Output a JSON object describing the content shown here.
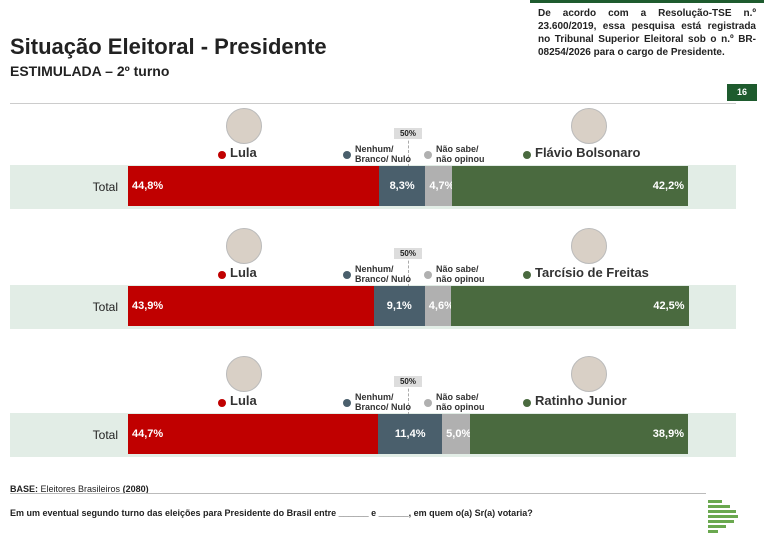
{
  "header": {
    "title": "Situação Eleitoral - Presidente",
    "subtitle": "ESTIMULADA – 2º turno",
    "disclaimer": "De acordo com a Resolução-TSE n.º 23.600/2019, essa pesquisa está registrada no Tribunal Superior Eleitoral sob o n.º BR-08254/2026 para o cargo de Presidente.",
    "page": "16"
  },
  "chart_data": [
    {
      "type": "bar",
      "orientation": "horizontal",
      "stacked": true,
      "categories": [
        "Total"
      ],
      "xlim": [
        0,
        100
      ],
      "reference": {
        "value": 50,
        "label": "50%"
      },
      "series": [
        {
          "name": "Lula",
          "color": "#c00000",
          "values": [
            44.8
          ],
          "value_labels": [
            "44,8%"
          ]
        },
        {
          "name": "Nenhum/\nBranco/ Nulo",
          "color": "#4a5f6c",
          "values": [
            8.3
          ],
          "value_labels": [
            "8,3%"
          ]
        },
        {
          "name": "Não sabe/\nnão opinou",
          "color": "#b0b0b0",
          "values": [
            4.7
          ],
          "value_labels": [
            "4,7%"
          ]
        },
        {
          "name": "Flávio Bolsonaro",
          "color": "#4a6a3f",
          "values": [
            42.2
          ],
          "value_labels": [
            "42,2%"
          ]
        }
      ]
    },
    {
      "type": "bar",
      "orientation": "horizontal",
      "stacked": true,
      "categories": [
        "Total"
      ],
      "xlim": [
        0,
        100
      ],
      "reference": {
        "value": 50,
        "label": "50%"
      },
      "series": [
        {
          "name": "Lula",
          "color": "#c00000",
          "values": [
            43.9
          ],
          "value_labels": [
            "43,9%"
          ]
        },
        {
          "name": "Nenhum/\nBranco/ Nulo",
          "color": "#4a5f6c",
          "values": [
            9.1
          ],
          "value_labels": [
            "9,1%"
          ]
        },
        {
          "name": "Não sabe/\nnão opinou",
          "color": "#b0b0b0",
          "values": [
            4.6
          ],
          "value_labels": [
            "4,6%"
          ]
        },
        {
          "name": "Tarcísio de Freitas",
          "color": "#4a6a3f",
          "values": [
            42.5
          ],
          "value_labels": [
            "42,5%"
          ]
        }
      ]
    },
    {
      "type": "bar",
      "orientation": "horizontal",
      "stacked": true,
      "categories": [
        "Total"
      ],
      "xlim": [
        0,
        100
      ],
      "reference": {
        "value": 50,
        "label": "50%"
      },
      "series": [
        {
          "name": "Lula",
          "color": "#c00000",
          "values": [
            44.7
          ],
          "value_labels": [
            "44,7%"
          ]
        },
        {
          "name": "Nenhum/\nBranco/ Nulo",
          "color": "#4a5f6c",
          "values": [
            11.4
          ],
          "value_labels": [
            "11,4%"
          ]
        },
        {
          "name": "Não sabe/\nnão opinou",
          "color": "#b0b0b0",
          "values": [
            5.0
          ],
          "value_labels": [
            "5,0%"
          ]
        },
        {
          "name": "Ratinho Junior",
          "color": "#4a6a3f",
          "values": [
            38.9
          ],
          "value_labels": [
            "38,9%"
          ]
        }
      ]
    }
  ],
  "footer": {
    "base_label": "BASE:",
    "base_text": "Eleitores Brasileiros",
    "base_n": "(2080)",
    "question": "Em um eventual segundo turno das eleições para Presidente do Brasil entre ______ e ______, em quem o(a) Sr(a) votaria?"
  }
}
